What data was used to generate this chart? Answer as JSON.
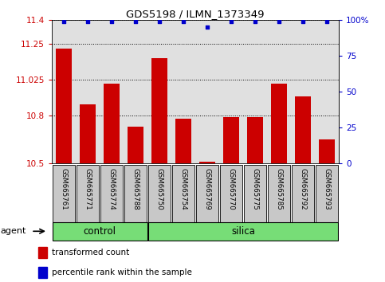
{
  "title": "GDS5198 / ILMN_1373349",
  "samples": [
    "GSM665761",
    "GSM665771",
    "GSM665774",
    "GSM665788",
    "GSM665750",
    "GSM665754",
    "GSM665769",
    "GSM665770",
    "GSM665775",
    "GSM665785",
    "GSM665792",
    "GSM665793"
  ],
  "red_values": [
    11.22,
    10.87,
    11.0,
    10.73,
    11.16,
    10.78,
    10.51,
    10.79,
    10.79,
    11.0,
    10.92,
    10.65
  ],
  "blue_values": [
    99,
    99,
    99,
    99,
    99,
    99,
    95,
    99,
    99,
    99,
    99,
    99
  ],
  "ymin": 10.5,
  "ymax": 11.4,
  "yticks": [
    10.5,
    10.8,
    11.025,
    11.25,
    11.4
  ],
  "ytick_labels": [
    "10.5",
    "10.8",
    "11.025",
    "11.25",
    "11.4"
  ],
  "right_yticks": [
    0,
    25,
    50,
    75,
    100
  ],
  "right_ytick_labels": [
    "0",
    "25",
    "50",
    "75",
    "100%"
  ],
  "control_count": 4,
  "silica_count": 8,
  "bar_color": "#cc0000",
  "dot_color": "#0000cc",
  "bar_width": 0.65,
  "axis_bg_color": "#e0e0e0",
  "sample_box_color": "#c8c8c8",
  "group_color": "#77dd77",
  "agent_label": "agent",
  "legend_red_label": "transformed count",
  "legend_blue_label": "percentile rank within the sample"
}
